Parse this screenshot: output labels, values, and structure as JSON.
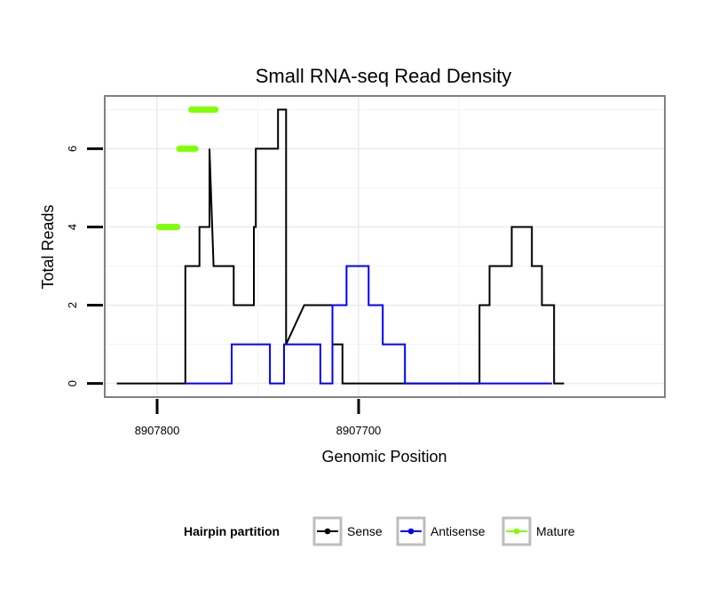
{
  "chart_data": {
    "type": "line",
    "title": "Small RNA-seq Read Density",
    "xlabel": "Genomic Position",
    "ylabel": "Total Reads",
    "x_reversed": true,
    "xlim": [
      8907826,
      8907548
    ],
    "ylim": [
      -0.35,
      7.35
    ],
    "x_ticks": [
      8907800,
      8907700
    ],
    "x_tick_labels": [
      "8907800",
      "8907700"
    ],
    "y_ticks": [
      0,
      2,
      4,
      6
    ],
    "y_tick_labels": [
      "0",
      "2",
      "4",
      "6"
    ],
    "grid": true,
    "legend": {
      "title": "Hairpin partition",
      "position": "bottom",
      "entries": [
        "Sense",
        "Antisense",
        "Mature"
      ]
    },
    "series": [
      {
        "name": "Sense",
        "color": "#000000",
        "x": [
          8907820,
          8907786,
          8907786,
          8907779,
          8907779,
          8907774,
          8907774,
          8907772,
          8907772,
          8907762,
          8907762,
          8907752,
          8907752,
          8907751,
          8907751,
          8907740,
          8907740,
          8907736,
          8907736,
          8907727,
          8907727,
          8907713,
          8907713,
          8907708,
          8907708,
          8907699,
          8907699,
          8907640,
          8907640,
          8907635,
          8907635,
          8907625,
          8907625,
          8907624,
          8907624,
          8907614,
          8907614,
          8907609,
          8907609,
          8907603,
          8907603,
          8907598
        ],
        "y": [
          0,
          0,
          3,
          3,
          4,
          4,
          6,
          3,
          3,
          3,
          2,
          2,
          4,
          4,
          6,
          6,
          7,
          7,
          1,
          2,
          2,
          2,
          1,
          1,
          0,
          0,
          0,
          0,
          2,
          2,
          3,
          3,
          3,
          3,
          4,
          4,
          3,
          3,
          2,
          2,
          0,
          0
        ]
      },
      {
        "name": "Antisense",
        "color": "#0000ff",
        "x": [
          8907786,
          8907763,
          8907763,
          8907744,
          8907744,
          8907737,
          8907737,
          8907719,
          8907719,
          8907713,
          8907713,
          8907706,
          8907706,
          8907695,
          8907695,
          8907688,
          8907688,
          8907677,
          8907677,
          8907670,
          8907670,
          8907660,
          8907660,
          8907625,
          8907625,
          8907640,
          8907640,
          8907619,
          8907619,
          8907612,
          8907612,
          8907604
        ],
        "y": [
          0,
          0,
          1,
          1,
          0,
          0,
          1,
          1,
          0,
          0,
          2,
          2,
          3,
          3,
          2,
          2,
          1,
          1,
          0,
          0,
          0,
          0,
          0,
          0,
          0,
          0,
          0,
          0,
          0,
          0,
          0,
          0
        ]
      },
      {
        "name": "Mature",
        "color": "#7fff00",
        "segments": [
          {
            "x0": 8907799,
            "x1": 8907790,
            "y": 4
          },
          {
            "x0": 8907789,
            "x1": 8907781,
            "y": 6
          },
          {
            "x0": 8907783,
            "x1": 8907771,
            "y": 7
          }
        ]
      }
    ]
  }
}
